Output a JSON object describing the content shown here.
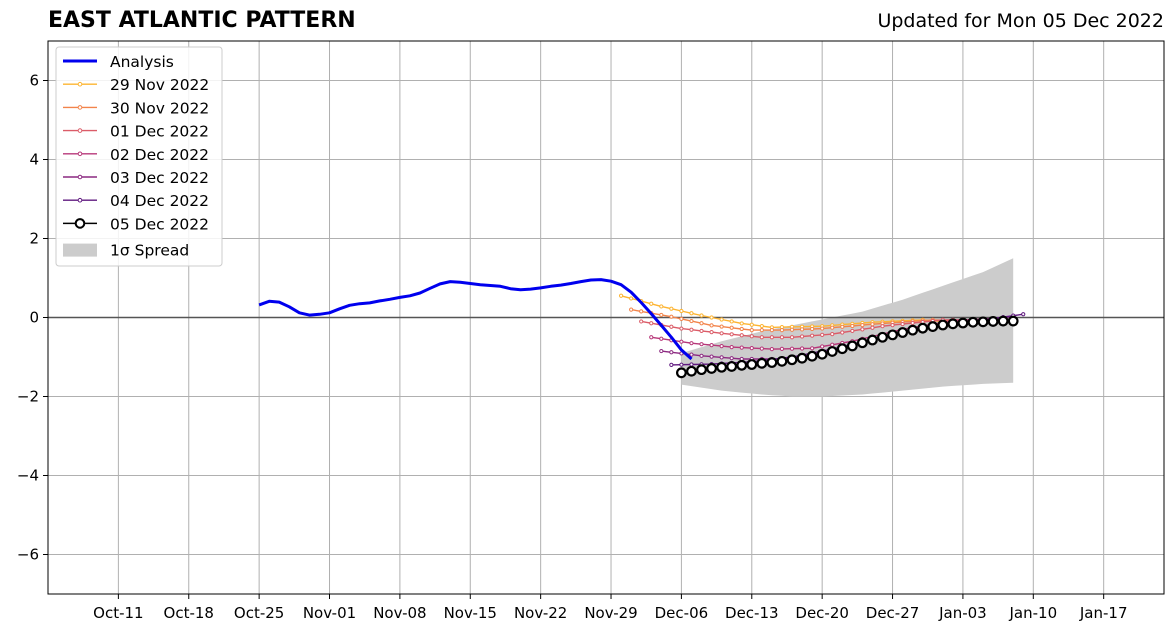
{
  "header": {
    "title": "EAST ATLANTIC PATTERN",
    "updated": "Updated for Mon 05 Dec 2022"
  },
  "chart_data": {
    "type": "line",
    "title": "EAST ATLANTIC PATTERN",
    "subtitle": "Updated for Mon 05 Dec 2022",
    "xlabel": "",
    "ylabel": "",
    "x_axis": {
      "type": "date",
      "range": [
        "2022-10-04",
        "2023-01-23"
      ],
      "ticks": [
        "2022-10-11",
        "2022-10-18",
        "2022-10-25",
        "2022-11-01",
        "2022-11-08",
        "2022-11-15",
        "2022-11-22",
        "2022-11-29",
        "2022-12-06",
        "2022-12-13",
        "2022-12-20",
        "2022-12-27",
        "2023-01-03",
        "2023-01-10",
        "2023-01-17"
      ],
      "tick_labels": [
        "Oct-11",
        "Oct-18",
        "Oct-25",
        "Nov-01",
        "Nov-08",
        "Nov-15",
        "Nov-22",
        "Nov-29",
        "Dec-06",
        "Dec-13",
        "Dec-20",
        "Dec-27",
        "Jan-03",
        "Jan-10",
        "Jan-17"
      ]
    },
    "y_axis": {
      "range": [
        -7,
        7
      ],
      "ticks": [
        -6,
        -4,
        -2,
        0,
        2,
        4,
        6
      ],
      "tick_labels": [
        "−6",
        "−4",
        "−2",
        "0",
        "2",
        "4",
        "6"
      ]
    },
    "grid": true,
    "legend_position": "top-left",
    "zero_line": true,
    "analysis": {
      "name": "Analysis",
      "color": "#0000ee",
      "start": "2022-10-25",
      "values": [
        0.32,
        0.41,
        0.39,
        0.27,
        0.12,
        0.06,
        0.08,
        0.12,
        0.22,
        0.31,
        0.35,
        0.37,
        0.42,
        0.46,
        0.51,
        0.55,
        0.62,
        0.74,
        0.85,
        0.91,
        0.89,
        0.86,
        0.83,
        0.81,
        0.79,
        0.73,
        0.7,
        0.72,
        0.75,
        0.79,
        0.82,
        0.86,
        0.91,
        0.95,
        0.96,
        0.92,
        0.83,
        0.64,
        0.38,
        0.1,
        -0.2,
        -0.5,
        -0.82,
        -1.05
      ]
    },
    "forecasts": [
      {
        "name": "29 Nov 2022",
        "color": "#fdb431",
        "start": "2022-11-30",
        "end": "2023-01-04",
        "anchors": [
          [
            0,
            0.55
          ],
          [
            4,
            0.28
          ],
          [
            8,
            0.05
          ],
          [
            12,
            -0.15
          ],
          [
            15,
            -0.25
          ],
          [
            20,
            -0.22
          ],
          [
            25,
            -0.12
          ],
          [
            30,
            -0.06
          ]
        ]
      },
      {
        "name": "30 Nov 2022",
        "color": "#f2844b",
        "start": "2022-12-01",
        "end": "2023-01-05",
        "anchors": [
          [
            0,
            0.2
          ],
          [
            4,
            0.02
          ],
          [
            8,
            -0.2
          ],
          [
            12,
            -0.32
          ],
          [
            15,
            -0.32
          ],
          [
            19,
            -0.28
          ],
          [
            24,
            -0.17
          ],
          [
            30,
            -0.06
          ]
        ]
      },
      {
        "name": "01 Dec 2022",
        "color": "#db5c68",
        "start": "2022-12-02",
        "end": "2023-01-06",
        "anchors": [
          [
            0,
            -0.1
          ],
          [
            4,
            -0.28
          ],
          [
            8,
            -0.4
          ],
          [
            12,
            -0.5
          ],
          [
            15,
            -0.5
          ],
          [
            19,
            -0.42
          ],
          [
            24,
            -0.22
          ],
          [
            30,
            -0.06
          ]
        ]
      },
      {
        "name": "02 Dec 2022",
        "color": "#b73779",
        "start": "2022-12-03",
        "end": "2023-01-07",
        "anchors": [
          [
            0,
            -0.5
          ],
          [
            4,
            -0.65
          ],
          [
            8,
            -0.75
          ],
          [
            12,
            -0.8
          ],
          [
            16,
            -0.78
          ],
          [
            20,
            -0.6
          ],
          [
            25,
            -0.3
          ],
          [
            30,
            -0.08
          ]
        ]
      },
      {
        "name": "03 Dec 2022",
        "color": "#8c2981",
        "start": "2022-12-04",
        "end": "2023-01-08",
        "anchors": [
          [
            0,
            -0.85
          ],
          [
            4,
            -0.97
          ],
          [
            8,
            -1.05
          ],
          [
            12,
            -1.05
          ],
          [
            16,
            -0.9
          ],
          [
            20,
            -0.62
          ],
          [
            25,
            -0.32
          ],
          [
            30,
            -0.1
          ]
        ]
      },
      {
        "name": "04 Dec 2022",
        "color": "#5f187f",
        "start": "2022-12-05",
        "end": "2023-01-09",
        "anchors": [
          [
            0,
            -1.2
          ],
          [
            4,
            -1.18
          ],
          [
            8,
            -1.12
          ],
          [
            12,
            -1.0
          ],
          [
            16,
            -0.8
          ],
          [
            20,
            -0.55
          ],
          [
            25,
            -0.28
          ],
          [
            30,
            -0.1
          ]
        ]
      }
    ],
    "current": {
      "name": "05 Dec 2022",
      "color": "#000000",
      "start": "2022-12-06",
      "values": [
        -1.4,
        -1.36,
        -1.32,
        -1.29,
        -1.26,
        -1.24,
        -1.21,
        -1.19,
        -1.16,
        -1.14,
        -1.11,
        -1.07,
        -1.03,
        -0.98,
        -0.93,
        -0.86,
        -0.79,
        -0.72,
        -0.64,
        -0.57,
        -0.5,
        -0.44,
        -0.38,
        -0.32,
        -0.27,
        -0.23,
        -0.19,
        -0.16,
        -0.14,
        -0.12,
        -0.11,
        -0.1,
        -0.09,
        -0.09
      ]
    },
    "spread": {
      "name": "1σ Spread",
      "color": "#cccccc",
      "start": "2022-12-06",
      "end": "2023-01-08",
      "upper": [
        [
          0,
          -0.9
        ],
        [
          4,
          -0.6
        ],
        [
          8,
          -0.35
        ],
        [
          11,
          -0.2
        ],
        [
          14,
          -0.05
        ],
        [
          18,
          0.15
        ],
        [
          22,
          0.45
        ],
        [
          26,
          0.8
        ],
        [
          30,
          1.15
        ],
        [
          33,
          1.5
        ]
      ],
      "lower": [
        [
          0,
          -1.7
        ],
        [
          4,
          -1.85
        ],
        [
          8,
          -1.95
        ],
        [
          11,
          -2.0
        ],
        [
          14,
          -2.0
        ],
        [
          18,
          -1.95
        ],
        [
          22,
          -1.85
        ],
        [
          26,
          -1.75
        ],
        [
          30,
          -1.68
        ],
        [
          33,
          -1.65
        ]
      ]
    }
  }
}
